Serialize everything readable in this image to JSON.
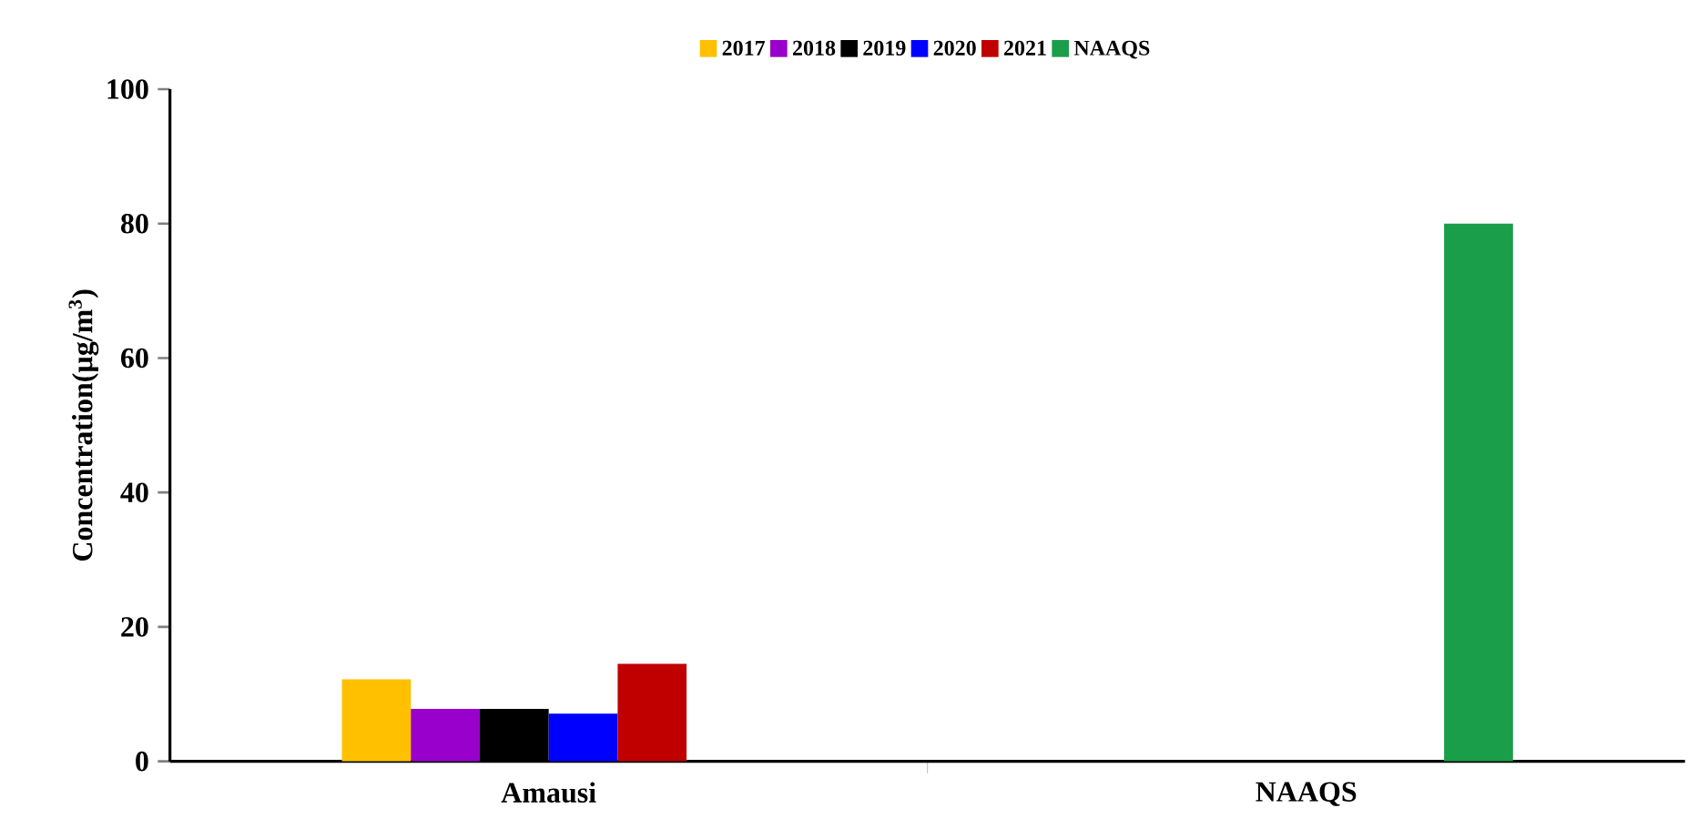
{
  "chart_data": {
    "type": "bar",
    "ylabel": "Concentration(µg/m$^{3}$)",
    "categories": [
      "Amausi",
      "NAAQS"
    ],
    "series": [
      {
        "name": "2017",
        "color": "#ffc000",
        "values": [
          12.2,
          null
        ]
      },
      {
        "name": "2018",
        "color": "#9900cc",
        "values": [
          7.8,
          null
        ]
      },
      {
        "name": "2019",
        "color": "#000000",
        "values": [
          7.8,
          null
        ]
      },
      {
        "name": "2020",
        "color": "#0000ff",
        "values": [
          7.1,
          null
        ]
      },
      {
        "name": "2021",
        "color": "#c00000",
        "values": [
          14.5,
          null
        ]
      },
      {
        "name": "NAAQS",
        "color": "#1a9e4a",
        "values": [
          null,
          80
        ]
      }
    ],
    "ylim": [
      0,
      100
    ],
    "yticks": [
      0,
      20,
      40,
      60,
      80,
      100
    ],
    "legend": "top"
  }
}
